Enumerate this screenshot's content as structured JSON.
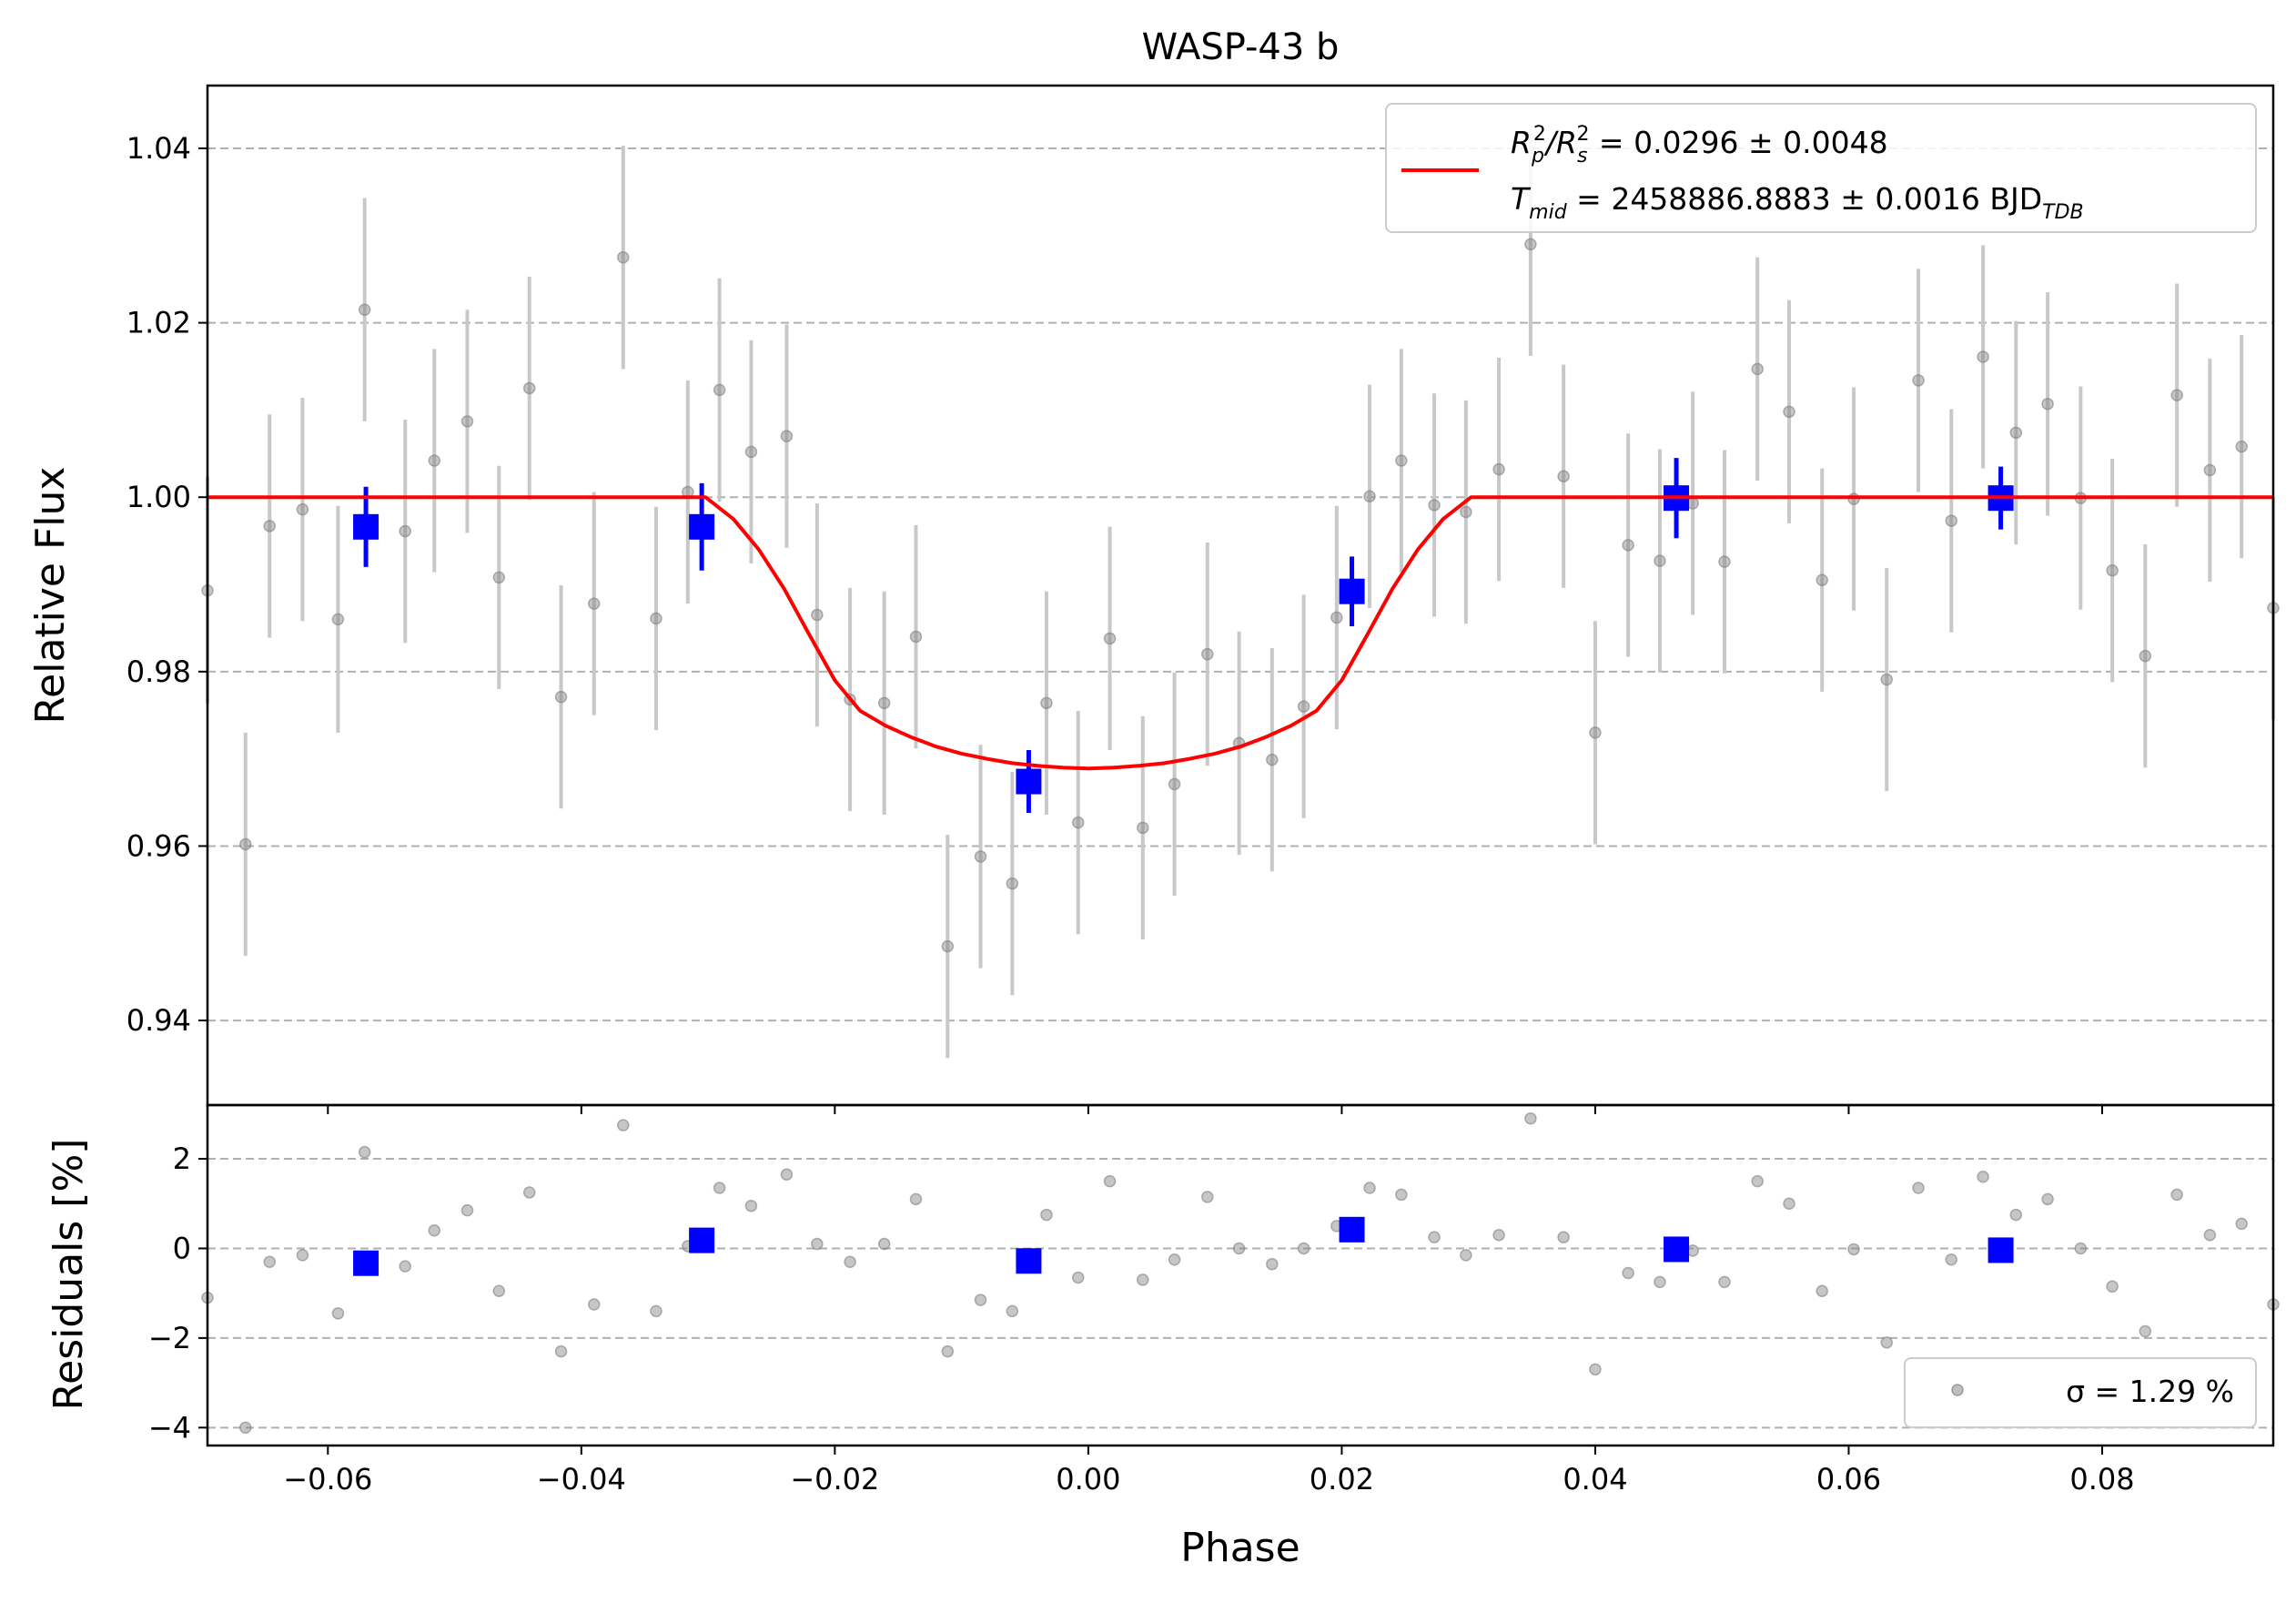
{
  "chart_data": {
    "type": "scatter",
    "title": "WASP-43 b",
    "xlabel": "Phase",
    "colors": {
      "raw_points": "#808080",
      "raw_errorbars": "#c8c8c8",
      "binned": "#0000ff",
      "model": "#ff0000",
      "grid": "#b0b0b0"
    },
    "top_panel": {
      "ylabel": "Relative Flux",
      "xlim": [
        -0.0695,
        0.0935
      ],
      "ylim": [
        0.9303,
        1.0472
      ],
      "grid": "horizontal dashed",
      "x_ticks": [
        -0.06,
        -0.04,
        -0.02,
        0.0,
        0.02,
        0.04,
        0.06,
        0.08
      ],
      "y_ticks": [
        0.94,
        0.96,
        0.98,
        1.0,
        1.02,
        1.04
      ],
      "y_tick_labels": [
        "0.94",
        "0.96",
        "0.98",
        "1.00",
        "1.02",
        "1.04"
      ],
      "legend": {
        "position": "upper right",
        "line1_parts": [
          "R",
          "p",
          "2",
          "/R",
          "s",
          "2",
          " = 0.0296 ± 0.0048"
        ],
        "line2_parts": [
          "T",
          "mid",
          " = 2458886.8883 ± 0.0016 BJD",
          "TDB"
        ]
      },
      "raw": [
        {
          "x": -0.0695,
          "y": 0.9893,
          "err": 0.013
        },
        {
          "x": -0.0665,
          "y": 0.9602,
          "err": 0.0128
        },
        {
          "x": -0.0646,
          "y": 0.9967,
          "err": 0.0128
        },
        {
          "x": -0.062,
          "y": 0.9986,
          "err": 0.0128
        },
        {
          "x": -0.0592,
          "y": 0.986,
          "err": 0.013
        },
        {
          "x": -0.0571,
          "y": 1.0215,
          "err": 0.0128
        },
        {
          "x": -0.0539,
          "y": 0.9961,
          "err": 0.0128
        },
        {
          "x": -0.0516,
          "y": 1.0042,
          "err": 0.0128
        },
        {
          "x": -0.049,
          "y": 1.0087,
          "err": 0.0128
        },
        {
          "x": -0.0465,
          "y": 0.9908,
          "err": 0.0128
        },
        {
          "x": -0.0441,
          "y": 1.0125,
          "err": 0.0128
        },
        {
          "x": -0.0416,
          "y": 0.9771,
          "err": 0.0128
        },
        {
          "x": -0.039,
          "y": 0.9878,
          "err": 0.0128
        },
        {
          "x": -0.0367,
          "y": 1.0275,
          "err": 0.0128
        },
        {
          "x": -0.0341,
          "y": 0.9861,
          "err": 0.0128
        },
        {
          "x": -0.0316,
          "y": 1.0006,
          "err": 0.0128
        },
        {
          "x": -0.0291,
          "y": 1.0123,
          "err": 0.0128
        },
        {
          "x": -0.0266,
          "y": 1.0052,
          "err": 0.0128
        },
        {
          "x": -0.0238,
          "y": 1.007,
          "err": 0.0128
        },
        {
          "x": -0.0214,
          "y": 0.9865,
          "err": 0.0128
        },
        {
          "x": -0.0188,
          "y": 0.9768,
          "err": 0.0128
        },
        {
          "x": -0.0161,
          "y": 0.9764,
          "err": 0.0128
        },
        {
          "x": -0.0136,
          "y": 0.984,
          "err": 0.0128
        },
        {
          "x": -0.0111,
          "y": 0.9485,
          "err": 0.0128
        },
        {
          "x": -0.0085,
          "y": 0.9588,
          "err": 0.0128
        },
        {
          "x": -0.006,
          "y": 0.9557,
          "err": 0.0128
        },
        {
          "x": -0.0033,
          "y": 0.9764,
          "err": 0.0128
        },
        {
          "x": -0.0008,
          "y": 0.9627,
          "err": 0.0128
        },
        {
          "x": 0.0017,
          "y": 0.9838,
          "err": 0.0128
        },
        {
          "x": 0.0043,
          "y": 0.9621,
          "err": 0.0128
        },
        {
          "x": 0.0068,
          "y": 0.9671,
          "err": 0.0128
        },
        {
          "x": 0.0094,
          "y": 0.982,
          "err": 0.0128
        },
        {
          "x": 0.0119,
          "y": 0.9718,
          "err": 0.0128
        },
        {
          "x": 0.0145,
          "y": 0.9699,
          "err": 0.0128
        },
        {
          "x": 0.017,
          "y": 0.976,
          "err": 0.0128
        },
        {
          "x": 0.0196,
          "y": 0.9862,
          "err": 0.0128
        },
        {
          "x": 0.0222,
          "y": 1.0001,
          "err": 0.0128
        },
        {
          "x": 0.0247,
          "y": 1.0042,
          "err": 0.0128
        },
        {
          "x": 0.0273,
          "y": 0.9991,
          "err": 0.0128
        },
        {
          "x": 0.0298,
          "y": 0.9983,
          "err": 0.0128
        },
        {
          "x": 0.0324,
          "y": 1.0032,
          "err": 0.0128
        },
        {
          "x": 0.0349,
          "y": 1.029,
          "err": 0.0128
        },
        {
          "x": 0.0375,
          "y": 1.0024,
          "err": 0.0128
        },
        {
          "x": 0.04,
          "y": 0.973,
          "err": 0.0128
        },
        {
          "x": 0.0426,
          "y": 0.9945,
          "err": 0.0128
        },
        {
          "x": 0.0451,
          "y": 0.9927,
          "err": 0.0128
        },
        {
          "x": 0.0477,
          "y": 0.9993,
          "err": 0.0128
        },
        {
          "x": 0.0502,
          "y": 0.9926,
          "err": 0.0128
        },
        {
          "x": 0.0528,
          "y": 1.0147,
          "err": 0.0128
        },
        {
          "x": 0.0553,
          "y": 1.0098,
          "err": 0.0128
        },
        {
          "x": 0.0579,
          "y": 0.9905,
          "err": 0.0128
        },
        {
          "x": 0.0604,
          "y": 0.9998,
          "err": 0.0128
        },
        {
          "x": 0.063,
          "y": 0.9791,
          "err": 0.0128
        },
        {
          "x": 0.0655,
          "y": 1.0134,
          "err": 0.0128
        },
        {
          "x": 0.0681,
          "y": 0.9973,
          "err": 0.0128
        },
        {
          "x": 0.0706,
          "y": 1.0161,
          "err": 0.0128
        },
        {
          "x": 0.0732,
          "y": 1.0074,
          "err": 0.0128
        },
        {
          "x": 0.0757,
          "y": 1.0107,
          "err": 0.0128
        },
        {
          "x": 0.0783,
          "y": 0.9999,
          "err": 0.0128
        },
        {
          "x": 0.0808,
          "y": 0.9916,
          "err": 0.0128
        },
        {
          "x": 0.0834,
          "y": 0.9818,
          "err": 0.0128
        },
        {
          "x": 0.0859,
          "y": 1.0117,
          "err": 0.0128
        },
        {
          "x": 0.0885,
          "y": 1.0031,
          "err": 0.0128
        },
        {
          "x": 0.091,
          "y": 1.0058,
          "err": 0.0128
        },
        {
          "x": 0.0935,
          "y": 0.9873,
          "err": 0.0128
        }
      ],
      "binned": [
        {
          "x": -0.057,
          "y": 0.9966,
          "err": 0.0046
        },
        {
          "x": -0.0305,
          "y": 0.9966,
          "err": 0.005
        },
        {
          "x": -0.0047,
          "y": 0.9674,
          "err": 0.0036
        },
        {
          "x": 0.0208,
          "y": 0.9892,
          "err": 0.004
        },
        {
          "x": 0.0464,
          "y": 0.9999,
          "err": 0.0046
        },
        {
          "x": 0.072,
          "y": 0.9999,
          "err": 0.0036
        }
      ],
      "model": {
        "x": [
          -0.0695,
          -0.0302,
          -0.028,
          -0.026,
          -0.024,
          -0.022,
          -0.02,
          -0.018,
          -0.016,
          -0.014,
          -0.012,
          -0.01,
          -0.008,
          -0.006,
          -0.004,
          -0.002,
          0.0,
          0.002,
          0.004,
          0.006,
          0.008,
          0.01,
          0.012,
          0.014,
          0.016,
          0.018,
          0.02,
          0.022,
          0.024,
          0.026,
          0.028,
          0.0302,
          0.0935
        ],
        "y": [
          1.0,
          1.0,
          0.9975,
          0.994,
          0.9895,
          0.9842,
          0.979,
          0.9755,
          0.9738,
          0.9725,
          0.9714,
          0.9706,
          0.97,
          0.9695,
          0.9692,
          0.969,
          0.9689,
          0.969,
          0.9692,
          0.9695,
          0.97,
          0.9706,
          0.9714,
          0.9725,
          0.9738,
          0.9755,
          0.979,
          0.9842,
          0.9895,
          0.994,
          0.9975,
          1.0,
          1.0
        ]
      }
    },
    "bottom_panel": {
      "ylabel": "Residuals [%]",
      "xlim": [
        -0.0695,
        0.0935
      ],
      "ylim": [
        -4.4,
        3.2
      ],
      "grid": "horizontal dashed",
      "x_ticks": [
        -0.06,
        -0.04,
        -0.02,
        0.0,
        0.02,
        0.04,
        0.06,
        0.08
      ],
      "x_tick_labels": [
        "−0.06",
        "−0.04",
        "−0.02",
        "0.00",
        "0.02",
        "0.04",
        "0.06",
        "0.08"
      ],
      "y_ticks": [
        -4,
        -2,
        0,
        2
      ],
      "y_tick_labels": [
        "−4",
        "−2",
        "0",
        "2"
      ],
      "legend": {
        "position": "lower right",
        "text": "σ = 1.29 %"
      },
      "raw": [
        {
          "x": -0.0695,
          "y": -1.1
        },
        {
          "x": -0.0665,
          "y": -4.0
        },
        {
          "x": -0.0646,
          "y": -0.3
        },
        {
          "x": -0.062,
          "y": -0.15
        },
        {
          "x": -0.0592,
          "y": -1.45
        },
        {
          "x": -0.0571,
          "y": 2.15
        },
        {
          "x": -0.0539,
          "y": -0.4
        },
        {
          "x": -0.0516,
          "y": 0.4
        },
        {
          "x": -0.049,
          "y": 0.85
        },
        {
          "x": -0.0465,
          "y": -0.95
        },
        {
          "x": -0.0441,
          "y": 1.25
        },
        {
          "x": -0.0416,
          "y": -2.3
        },
        {
          "x": -0.039,
          "y": -1.25
        },
        {
          "x": -0.0367,
          "y": 2.75
        },
        {
          "x": -0.0341,
          "y": -1.4
        },
        {
          "x": -0.0316,
          "y": 0.05
        },
        {
          "x": -0.0291,
          "y": 1.35
        },
        {
          "x": -0.0266,
          "y": 0.95
        },
        {
          "x": -0.0238,
          "y": 1.65
        },
        {
          "x": -0.0214,
          "y": 0.1
        },
        {
          "x": -0.0188,
          "y": -0.3
        },
        {
          "x": -0.0161,
          "y": 0.1
        },
        {
          "x": -0.0136,
          "y": 1.1
        },
        {
          "x": -0.0111,
          "y": -2.3
        },
        {
          "x": -0.0085,
          "y": -1.15
        },
        {
          "x": -0.006,
          "y": -1.4
        },
        {
          "x": -0.0033,
          "y": 0.75
        },
        {
          "x": -0.0008,
          "y": -0.65
        },
        {
          "x": 0.0017,
          "y": 1.5
        },
        {
          "x": 0.0043,
          "y": -0.7
        },
        {
          "x": 0.0068,
          "y": -0.25
        },
        {
          "x": 0.0094,
          "y": 1.15
        },
        {
          "x": 0.0119,
          "y": 0.0
        },
        {
          "x": 0.0145,
          "y": -0.35
        },
        {
          "x": 0.017,
          "y": 0.0
        },
        {
          "x": 0.0196,
          "y": 0.5
        },
        {
          "x": 0.0222,
          "y": 1.35
        },
        {
          "x": 0.0247,
          "y": 1.2
        },
        {
          "x": 0.0273,
          "y": 0.25
        },
        {
          "x": 0.0298,
          "y": -0.15
        },
        {
          "x": 0.0324,
          "y": 0.3
        },
        {
          "x": 0.0349,
          "y": 2.9
        },
        {
          "x": 0.0375,
          "y": 0.25
        },
        {
          "x": 0.04,
          "y": -2.7
        },
        {
          "x": 0.0426,
          "y": -0.55
        },
        {
          "x": 0.0451,
          "y": -0.75
        },
        {
          "x": 0.0477,
          "y": -0.05
        },
        {
          "x": 0.0502,
          "y": -0.75
        },
        {
          "x": 0.0528,
          "y": 1.5
        },
        {
          "x": 0.0553,
          "y": 1.0
        },
        {
          "x": 0.0579,
          "y": -0.95
        },
        {
          "x": 0.0604,
          "y": -0.02
        },
        {
          "x": 0.063,
          "y": -2.1
        },
        {
          "x": 0.0655,
          "y": 1.35
        },
        {
          "x": 0.0681,
          "y": -0.25
        },
        {
          "x": 0.0706,
          "y": 1.6
        },
        {
          "x": 0.0732,
          "y": 0.75
        },
        {
          "x": 0.0757,
          "y": 1.1
        },
        {
          "x": 0.0783,
          "y": 0.0
        },
        {
          "x": 0.0808,
          "y": -0.85
        },
        {
          "x": 0.0834,
          "y": -1.85
        },
        {
          "x": 0.0859,
          "y": 1.2
        },
        {
          "x": 0.0885,
          "y": 0.3
        },
        {
          "x": 0.091,
          "y": 0.55
        },
        {
          "x": 0.0935,
          "y": -1.25
        }
      ],
      "binned": [
        {
          "x": -0.057,
          "y": -0.33
        },
        {
          "x": -0.0305,
          "y": 0.18
        },
        {
          "x": -0.0047,
          "y": -0.28
        },
        {
          "x": 0.0208,
          "y": 0.42
        },
        {
          "x": 0.0464,
          "y": -0.02
        },
        {
          "x": 0.072,
          "y": -0.04
        }
      ]
    }
  }
}
